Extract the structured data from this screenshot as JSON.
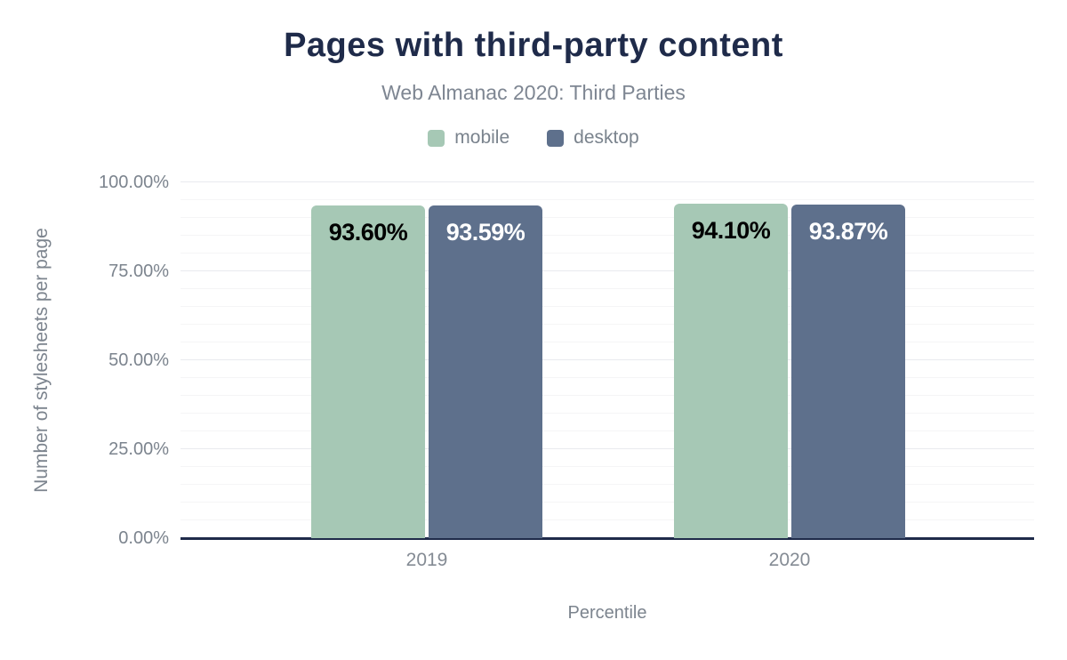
{
  "chart_data": {
    "type": "bar",
    "title": "Pages with third-party content",
    "subtitle": "Web Almanac 2020: Third Parties",
    "categories": [
      "2019",
      "2020"
    ],
    "series": [
      {
        "name": "mobile",
        "color": "#a6c8b5",
        "label_color": "#000000",
        "values": [
          93.6,
          94.1
        ],
        "labels": [
          "93.60%",
          "94.10%"
        ]
      },
      {
        "name": "desktop",
        "color": "#5e708c",
        "label_color": "#ffffff",
        "values": [
          93.59,
          93.87
        ],
        "labels": [
          "93.59%",
          "93.87%"
        ]
      }
    ],
    "xlabel": "Percentile",
    "ylabel": "Number of stylesheets per page",
    "ylim": [
      0,
      100
    ],
    "yticks": [
      {
        "value": 0,
        "label": "0.00%"
      },
      {
        "value": 25,
        "label": "25.00%"
      },
      {
        "value": 50,
        "label": "50.00%"
      },
      {
        "value": 75,
        "label": "75.00%"
      },
      {
        "value": 100,
        "label": "100.00%"
      }
    ],
    "grid": {
      "minor_step": 5,
      "major_step": 25,
      "minor_color": "#f5f5f6",
      "major_color": "#e9eaee"
    },
    "legend_position": "top",
    "axis_color": "#1f2b4a",
    "title_color": "#1f2b4a",
    "muted_text_color": "#7c848e"
  }
}
